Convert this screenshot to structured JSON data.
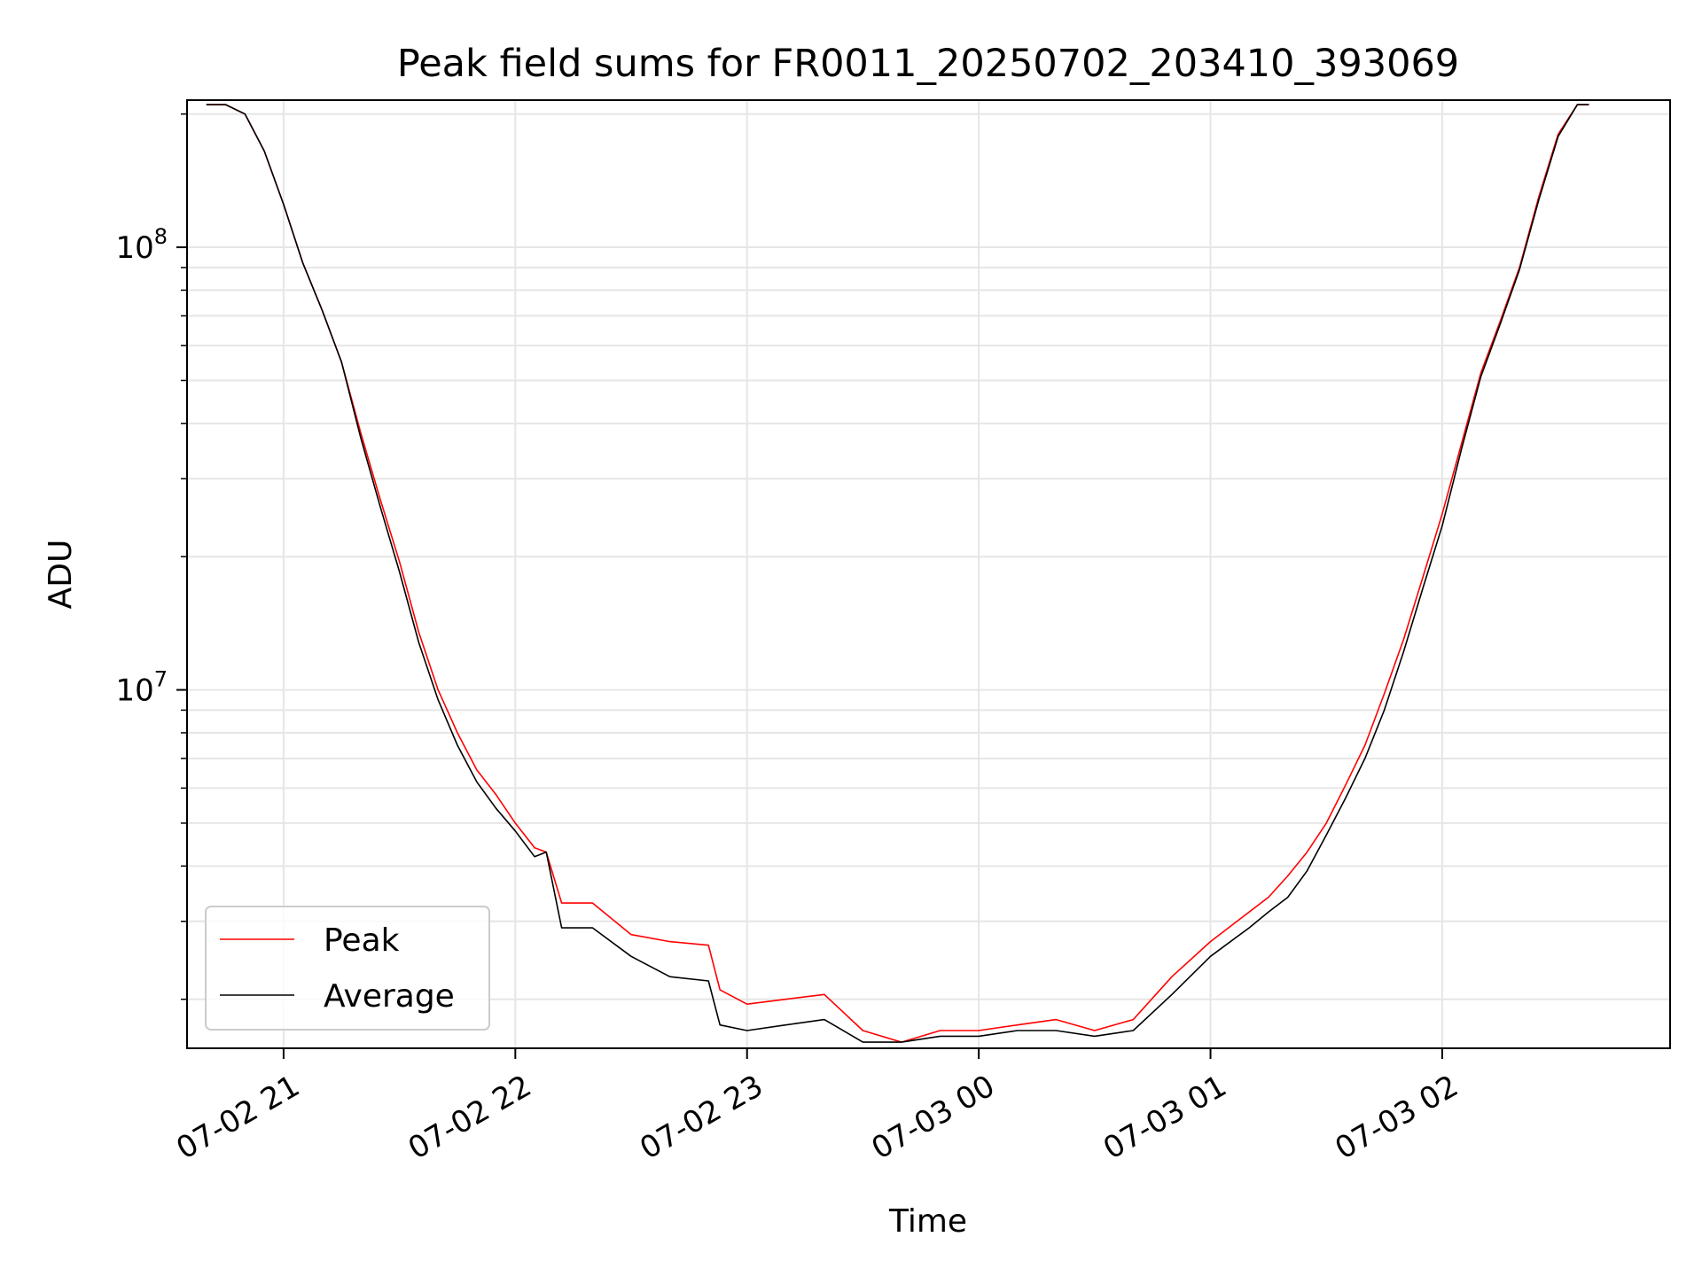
{
  "chart_data": {
    "type": "line",
    "title": "Peak field sums for FR0011_20250702_203410_393069",
    "xlabel": "Time",
    "ylabel": "ADU",
    "yscale": "log",
    "grid": true,
    "legend_position": "lower-left",
    "x_ticks": [
      {
        "t": "2025-07-02 21:00",
        "label": "07-02 21"
      },
      {
        "t": "2025-07-02 22:00",
        "label": "07-02 22"
      },
      {
        "t": "2025-07-02 23:00",
        "label": "07-02 23"
      },
      {
        "t": "2025-07-03 00:00",
        "label": "07-03 00"
      },
      {
        "t": "2025-07-03 01:00",
        "label": "07-03 01"
      },
      {
        "t": "2025-07-03 02:00",
        "label": "07-03 02"
      }
    ],
    "y_ticks": [
      {
        "value": 10000000,
        "base": "10",
        "exp": "7"
      },
      {
        "value": 100000000,
        "base": "10",
        "exp": "8"
      }
    ],
    "xlim": [
      "2025-07-02 20:35",
      "2025-07-03 02:59"
    ],
    "ylim": [
      1550000,
      215000000
    ],
    "x": [
      "2025-07-02 20:40",
      "2025-07-02 20:45",
      "2025-07-02 20:50",
      "2025-07-02 20:55",
      "2025-07-02 21:00",
      "2025-07-02 21:05",
      "2025-07-02 21:10",
      "2025-07-02 21:15",
      "2025-07-02 21:20",
      "2025-07-02 21:25",
      "2025-07-02 21:30",
      "2025-07-02 21:35",
      "2025-07-02 21:40",
      "2025-07-02 21:45",
      "2025-07-02 21:50",
      "2025-07-02 21:55",
      "2025-07-02 22:00",
      "2025-07-02 22:05",
      "2025-07-02 22:08",
      "2025-07-02 22:12",
      "2025-07-02 22:20",
      "2025-07-02 22:30",
      "2025-07-02 22:40",
      "2025-07-02 22:50",
      "2025-07-02 22:53",
      "2025-07-02 23:00",
      "2025-07-02 23:10",
      "2025-07-02 23:20",
      "2025-07-02 23:30",
      "2025-07-02 23:40",
      "2025-07-02 23:50",
      "2025-07-03 00:00",
      "2025-07-03 00:10",
      "2025-07-03 00:20",
      "2025-07-03 00:30",
      "2025-07-03 00:40",
      "2025-07-03 00:50",
      "2025-07-03 01:00",
      "2025-07-03 01:10",
      "2025-07-03 01:15",
      "2025-07-03 01:20",
      "2025-07-03 01:25",
      "2025-07-03 01:30",
      "2025-07-03 01:35",
      "2025-07-03 01:40",
      "2025-07-03 01:45",
      "2025-07-03 01:50",
      "2025-07-03 01:55",
      "2025-07-03 02:00",
      "2025-07-03 02:05",
      "2025-07-03 02:10",
      "2025-07-03 02:15",
      "2025-07-03 02:20",
      "2025-07-03 02:25",
      "2025-07-03 02:30",
      "2025-07-03 02:35",
      "2025-07-03 02:38"
    ],
    "series": [
      {
        "name": "Peak",
        "color": "#ff0000",
        "values": [
          210000000,
          210000000,
          200000000,
          165000000,
          125000000,
          92000000,
          72000000,
          55000000,
          38000000,
          27000000,
          19500000,
          13500000,
          10000000,
          8000000,
          6600000,
          5800000,
          5000000,
          4400000,
          4300000,
          3300000,
          3300000,
          2800000,
          2700000,
          2650000,
          2100000,
          1950000,
          2000000,
          2050000,
          1700000,
          1600000,
          1700000,
          1700000,
          1750000,
          1800000,
          1700000,
          1800000,
          2250000,
          2700000,
          3150000,
          3400000,
          3800000,
          4300000,
          5000000,
          6100000,
          7500000,
          9800000,
          13000000,
          18000000,
          25000000,
          36000000,
          52000000,
          68000000,
          90000000,
          130000000,
          180000000,
          210000000,
          210000000
        ]
      },
      {
        "name": "Average",
        "color": "#000000",
        "values": [
          210000000,
          210000000,
          200000000,
          165000000,
          125000000,
          92000000,
          72000000,
          55000000,
          37000000,
          26000000,
          18500000,
          12800000,
          9500000,
          7500000,
          6200000,
          5400000,
          4800000,
          4200000,
          4300000,
          2900000,
          2900000,
          2500000,
          2250000,
          2200000,
          1750000,
          1700000,
          1750000,
          1800000,
          1600000,
          1600000,
          1650000,
          1650000,
          1700000,
          1700000,
          1650000,
          1700000,
          2050000,
          2500000,
          2900000,
          3150000,
          3400000,
          3900000,
          4700000,
          5700000,
          7000000,
          9000000,
          12200000,
          17000000,
          23500000,
          35000000,
          51000000,
          67000000,
          89000000,
          128000000,
          178000000,
          210000000,
          210000000
        ]
      }
    ]
  }
}
